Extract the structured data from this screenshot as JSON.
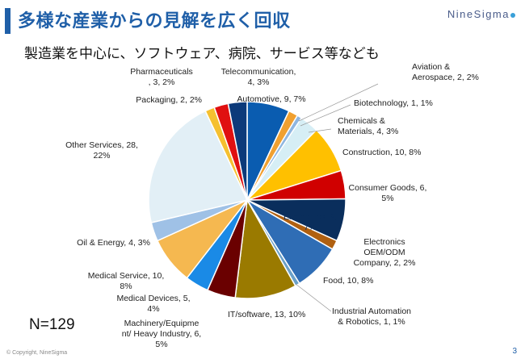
{
  "header": {
    "title": "多様な産業からの見解を広く回収",
    "logo_text": "NineSigma",
    "accent": "#1f5fa8"
  },
  "subtitle": "製造業を中心に、ソフトウェア、病院、サービス等なども",
  "n_label": "N=129",
  "footer": {
    "copyright": "© Copyright, NineSigma",
    "page": "3"
  },
  "chart_data": {
    "type": "pie",
    "total": 129,
    "start": "12 o'clock",
    "direction": "clockwise",
    "legend": "none",
    "slices": [
      {
        "label": "Automotive, 9, 7%",
        "value": 9,
        "color": "#0a5cb0"
      },
      {
        "label": "Aviation & Aerospace, 2, 2%",
        "value": 2,
        "color": "#f0a030"
      },
      {
        "label": "Biotechnology, 1, 1%",
        "value": 1,
        "color": "#8fb6e0"
      },
      {
        "label": "Chemicals & Materials, 4, 3%",
        "value": 4,
        "color": "#d6eef5"
      },
      {
        "label": "Construction, 10, 8%",
        "value": 10,
        "color": "#ffc000"
      },
      {
        "label": "Consumer Goods, 6, 5%",
        "value": 6,
        "color": "#d00000"
      },
      {
        "label": "Electronics, 9, 7%",
        "value": 9,
        "color": "#0a2e5c"
      },
      {
        "label": "Electronics OEM/ODM Company, 2, 2%",
        "value": 2,
        "color": "#b06010"
      },
      {
        "label": "Food, 10, 8%",
        "value": 10,
        "color": "#2f6db5"
      },
      {
        "label": "Industrial Automation & Robotics, 1, 1%",
        "value": 1,
        "color": "#6aa0c8"
      },
      {
        "label": "IT/software, 13, 10%",
        "value": 13,
        "color": "#9a7a00"
      },
      {
        "label": "Machinery/Equipment/ Heavy Industry, 6, 5%",
        "value": 6,
        "color": "#6a0000"
      },
      {
        "label": "Medical Devices, 5, 4%",
        "value": 5,
        "color": "#1a8ae6"
      },
      {
        "label": "Medical Service, 10, 8%",
        "value": 10,
        "color": "#f5b850"
      },
      {
        "label": "Oil & Energy, 4, 3%",
        "value": 4,
        "color": "#9fc1e6"
      },
      {
        "label": "Other Services, 28, 22%",
        "value": 28,
        "color": "#e2eff6"
      },
      {
        "label": "Packaging, 2, 2%",
        "value": 2,
        "color": "#f5c030"
      },
      {
        "label": "Pharmaceuticals, 3, 2%",
        "value": 3,
        "color": "#e01010"
      },
      {
        "label": "Telecommunication, 4, 3%",
        "value": 4,
        "color": "#0c3a7a"
      }
    ]
  }
}
